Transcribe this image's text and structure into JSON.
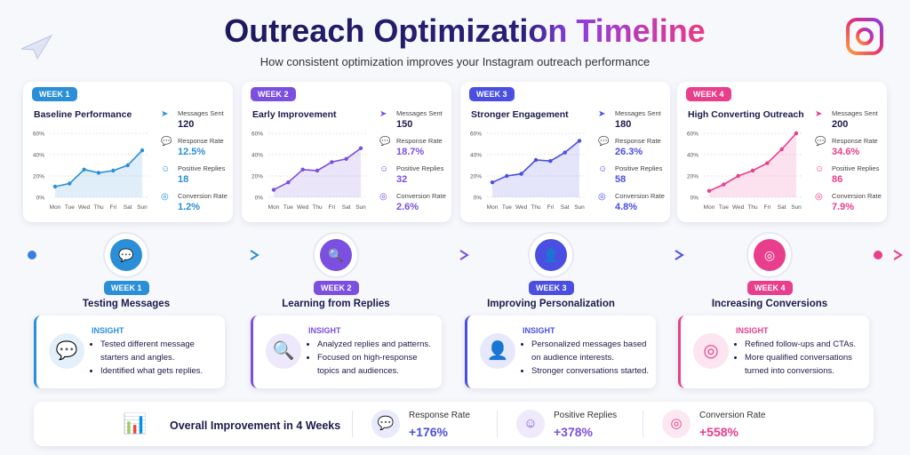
{
  "header": {
    "title": "Outreach Optimization Timeline",
    "subtitle": "How consistent optimization improves your Instagram outreach performance"
  },
  "chart_data": [
    {
      "type": "line",
      "week": "WEEK 1",
      "title": "Baseline Performance",
      "color": "#2b8fd8",
      "categories": [
        "Mon",
        "Tue",
        "Wed",
        "Thu",
        "Fri",
        "Sat",
        "Sun"
      ],
      "values": [
        10,
        13,
        26,
        23,
        25,
        30,
        44
      ],
      "ylim": [
        0,
        60
      ],
      "yticks": [
        {
          "value": 0,
          "label": "0%"
        },
        {
          "value": 20,
          "label": "20%"
        },
        {
          "value": 40,
          "label": "40%"
        },
        {
          "value": 60,
          "label": "60%"
        }
      ],
      "grid": true,
      "stats": [
        {
          "label": "Messages Sent",
          "value": "120"
        },
        {
          "label": "Response Rate",
          "value": "12.5%"
        },
        {
          "label": "Positive Replies",
          "value": "18"
        },
        {
          "label": "Conversion Rate",
          "value": "1.2%"
        }
      ]
    },
    {
      "type": "line",
      "week": "WEEK 2",
      "title": "Early Improvement",
      "color": "#7b4fe0",
      "categories": [
        "Mon",
        "Tue",
        "Wed",
        "Thu",
        "Fri",
        "Sat",
        "Sun"
      ],
      "values": [
        7,
        14,
        26,
        25,
        33,
        36,
        46
      ],
      "ylim": [
        0,
        60
      ],
      "yticks": [
        {
          "value": 0,
          "label": "0%"
        },
        {
          "value": 20,
          "label": "20%"
        },
        {
          "value": 40,
          "label": "40%"
        },
        {
          "value": 60,
          "label": "60%"
        }
      ],
      "grid": true,
      "stats": [
        {
          "label": "Messages Sent",
          "value": "150"
        },
        {
          "label": "Response Rate",
          "value": "18.7%"
        },
        {
          "label": "Positive Replies",
          "value": "32"
        },
        {
          "label": "Conversion Rate",
          "value": "2.6%"
        }
      ]
    },
    {
      "type": "line",
      "week": "WEEK 3",
      "title": "Stronger Engagement",
      "color": "#4a4fe2",
      "categories": [
        "Mon",
        "Tue",
        "Wed",
        "Thu",
        "Fri",
        "Sat",
        "Sun"
      ],
      "values": [
        14,
        20,
        22,
        35,
        34,
        42,
        53
      ],
      "ylim": [
        0,
        60
      ],
      "yticks": [
        {
          "value": 0,
          "label": "0%"
        },
        {
          "value": 20,
          "label": "20%"
        },
        {
          "value": 40,
          "label": "40%"
        },
        {
          "value": 60,
          "label": "60%"
        }
      ],
      "grid": true,
      "stats": [
        {
          "label": "Messages Sent",
          "value": "180"
        },
        {
          "label": "Response Rate",
          "value": "26.3%"
        },
        {
          "label": "Positive Replies",
          "value": "58"
        },
        {
          "label": "Conversion Rate",
          "value": "4.8%"
        }
      ]
    },
    {
      "type": "line",
      "week": "WEEK 4",
      "title": "High Converting Outreach",
      "color": "#e83e8c",
      "categories": [
        "Mon",
        "Tue",
        "Wed",
        "Thu",
        "Fri",
        "Sat",
        "Sun"
      ],
      "values": [
        6,
        12,
        20,
        25,
        32,
        45,
        60
      ],
      "ylim": [
        0,
        60
      ],
      "yticks": [
        {
          "value": 0,
          "label": "0%"
        },
        {
          "value": 20,
          "label": "20%"
        },
        {
          "value": 40,
          "label": "40%"
        },
        {
          "value": 60,
          "label": "60%"
        }
      ],
      "grid": true,
      "stats": [
        {
          "label": "Messages Sent",
          "value": "200"
        },
        {
          "label": "Response Rate",
          "value": "34.6%"
        },
        {
          "label": "Positive Replies",
          "value": "86"
        },
        {
          "label": "Conversion Rate",
          "value": "7.9%"
        }
      ]
    }
  ],
  "timeline": [
    {
      "week": "WEEK 1",
      "heading": "Testing Messages",
      "insight": "INSIGHT",
      "bullets": [
        "Tested different message starters and angles.",
        "Identified what gets replies."
      ]
    },
    {
      "week": "WEEK 2",
      "heading": "Learning from Replies",
      "insight": "INSIGHT",
      "bullets": [
        "Analyzed replies and patterns.",
        "Focused on high-response topics and audiences."
      ]
    },
    {
      "week": "WEEK 3",
      "heading": "Improving Personalization",
      "insight": "INSIGHT",
      "bullets": [
        "Personalized messages based on audience interests.",
        "Stronger conversations started."
      ]
    },
    {
      "week": "WEEK 4",
      "heading": "Increasing Conversions",
      "insight": "INSIGHT",
      "bullets": [
        "Refined follow-ups and CTAs.",
        "More qualified conversations turned into conversions."
      ]
    }
  ],
  "summary": {
    "title": "Overall Improvement in 4 Weeks",
    "items": [
      {
        "label": "Response Rate",
        "value": "+176%"
      },
      {
        "label": "Positive Replies",
        "value": "+378%"
      },
      {
        "label": "Conversion Rate",
        "value": "+558%"
      }
    ]
  }
}
